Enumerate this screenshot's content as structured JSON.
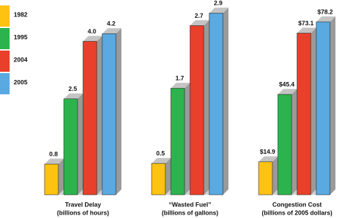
{
  "chart_data": {
    "type": "bar",
    "categories": [
      "Travel Delay",
      "“Wasted Fuel”",
      "Congestion Cost"
    ],
    "category_units": [
      "(billions of hours)",
      "(billions of gallons)",
      "(billions of 2005 dollars)"
    ],
    "ylims": [
      [
        0,
        4.9
      ],
      [
        0,
        3.0
      ],
      [
        0,
        85
      ]
    ],
    "series": [
      {
        "name": "1982",
        "color": "#fec311",
        "values": [
          0.8,
          0.5,
          14.9
        ],
        "value_labels": [
          "0.8",
          "0.5",
          "$14.9"
        ]
      },
      {
        "name": "1995",
        "color": "#2db34d",
        "values": [
          2.5,
          1.7,
          45.4
        ],
        "value_labels": [
          "2.5",
          "1.7",
          "$45.4"
        ]
      },
      {
        "name": "2004",
        "color": "#e8402b",
        "values": [
          4.0,
          2.7,
          73.1
        ],
        "value_labels": [
          "4.0",
          "2.7",
          "$73.1"
        ]
      },
      {
        "name": "2005",
        "color": "#5aa9e0",
        "values": [
          4.2,
          2.9,
          78.2
        ],
        "value_labels": [
          "4.2",
          "2.9",
          "$78.2"
        ]
      }
    ]
  }
}
